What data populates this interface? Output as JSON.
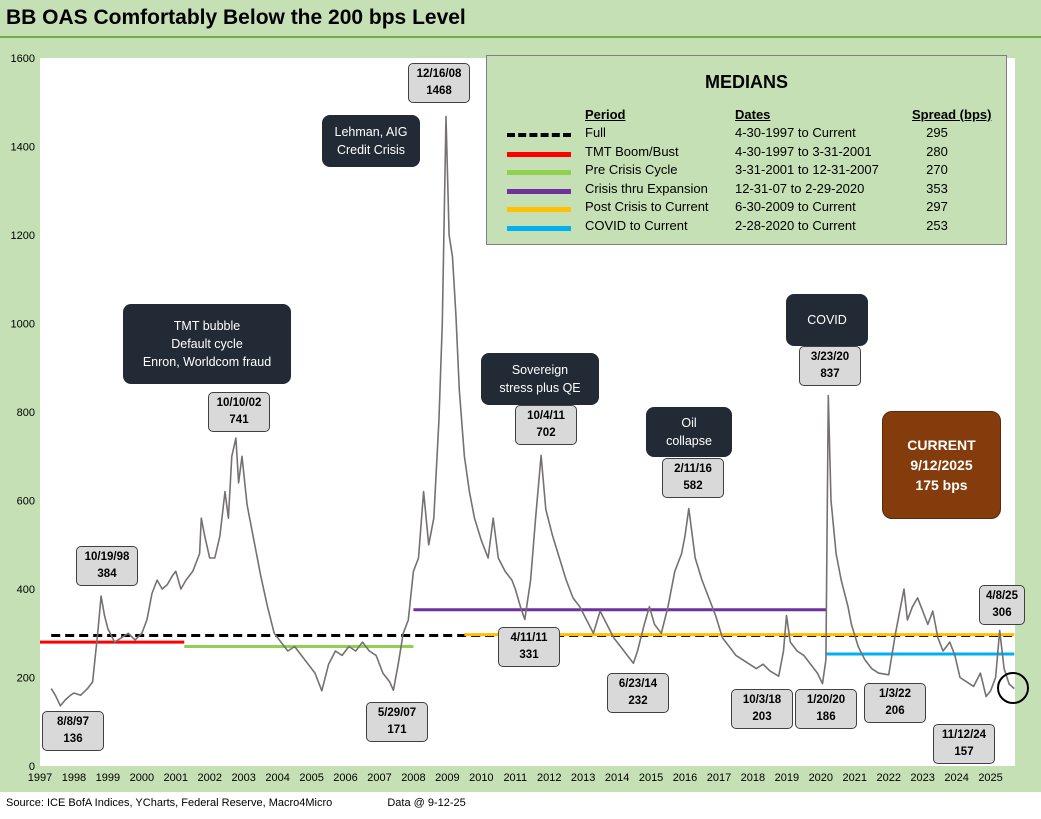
{
  "title": "BB OAS Comfortably Below the 200 bps Level",
  "footer": {
    "source": "Source: ICE BofA Indices, YCharts, Federal Reserve, Macro4Micro",
    "data_date": "Data @ 9-12-25"
  },
  "chart_data": {
    "type": "line",
    "ylim": [
      0,
      1600
    ],
    "yticks": [
      "0",
      "200",
      "400",
      "600",
      "800",
      "1000",
      "1200",
      "1400",
      "1600"
    ],
    "xlim": [
      1997.0,
      2025.72
    ],
    "xticks": [
      "1997",
      "1998",
      "1999",
      "2000",
      "2001",
      "2002",
      "2003",
      "2004",
      "2005",
      "2006",
      "2007",
      "2008",
      "2009",
      "2010",
      "2011",
      "2012",
      "2013",
      "2014",
      "2015",
      "2016",
      "2017",
      "2018",
      "2019",
      "2020",
      "2021",
      "2022",
      "2023",
      "2024",
      "2025"
    ],
    "series": [
      {
        "name": "BB OAS",
        "color": "#767171",
        "points": [
          [
            1997.33,
            175
          ],
          [
            1997.45,
            160
          ],
          [
            1997.6,
            136
          ],
          [
            1997.75,
            150
          ],
          [
            1997.9,
            160
          ],
          [
            1998.0,
            165
          ],
          [
            1998.2,
            160
          ],
          [
            1998.4,
            175
          ],
          [
            1998.55,
            190
          ],
          [
            1998.7,
            300
          ],
          [
            1998.8,
            384
          ],
          [
            1998.9,
            340
          ],
          [
            1999.0,
            310
          ],
          [
            1999.2,
            280
          ],
          [
            1999.4,
            290
          ],
          [
            1999.6,
            300
          ],
          [
            1999.8,
            285
          ],
          [
            2000.0,
            300
          ],
          [
            2000.15,
            330
          ],
          [
            2000.3,
            390
          ],
          [
            2000.45,
            420
          ],
          [
            2000.6,
            400
          ],
          [
            2000.75,
            410
          ],
          [
            2000.9,
            430
          ],
          [
            2001.0,
            440
          ],
          [
            2001.15,
            400
          ],
          [
            2001.3,
            420
          ],
          [
            2001.5,
            440
          ],
          [
            2001.7,
            480
          ],
          [
            2001.75,
            560
          ],
          [
            2001.85,
            520
          ],
          [
            2002.0,
            470
          ],
          [
            2002.15,
            470
          ],
          [
            2002.3,
            520
          ],
          [
            2002.45,
            620
          ],
          [
            2002.55,
            560
          ],
          [
            2002.65,
            700
          ],
          [
            2002.77,
            741
          ],
          [
            2002.85,
            640
          ],
          [
            2002.95,
            700
          ],
          [
            2003.1,
            590
          ],
          [
            2003.3,
            510
          ],
          [
            2003.5,
            430
          ],
          [
            2003.7,
            360
          ],
          [
            2003.9,
            300
          ],
          [
            2004.1,
            280
          ],
          [
            2004.3,
            260
          ],
          [
            2004.5,
            270
          ],
          [
            2004.7,
            250
          ],
          [
            2004.9,
            230
          ],
          [
            2005.1,
            210
          ],
          [
            2005.3,
            170
          ],
          [
            2005.5,
            230
          ],
          [
            2005.7,
            260
          ],
          [
            2005.9,
            250
          ],
          [
            2006.1,
            270
          ],
          [
            2006.3,
            260
          ],
          [
            2006.5,
            280
          ],
          [
            2006.7,
            260
          ],
          [
            2006.9,
            250
          ],
          [
            2007.1,
            210
          ],
          [
            2007.3,
            190
          ],
          [
            2007.41,
            171
          ],
          [
            2007.55,
            230
          ],
          [
            2007.7,
            300
          ],
          [
            2007.85,
            330
          ],
          [
            2008.0,
            440
          ],
          [
            2008.15,
            470
          ],
          [
            2008.3,
            620
          ],
          [
            2008.45,
            500
          ],
          [
            2008.6,
            560
          ],
          [
            2008.75,
            780
          ],
          [
            2008.85,
            1000
          ],
          [
            2008.96,
            1468
          ],
          [
            2009.05,
            1200
          ],
          [
            2009.15,
            1150
          ],
          [
            2009.25,
            1020
          ],
          [
            2009.35,
            850
          ],
          [
            2009.5,
            700
          ],
          [
            2009.65,
            620
          ],
          [
            2009.8,
            560
          ],
          [
            2010.0,
            510
          ],
          [
            2010.2,
            470
          ],
          [
            2010.35,
            560
          ],
          [
            2010.5,
            470
          ],
          [
            2010.7,
            440
          ],
          [
            2010.9,
            420
          ],
          [
            2011.0,
            400
          ],
          [
            2011.15,
            360
          ],
          [
            2011.28,
            331
          ],
          [
            2011.45,
            420
          ],
          [
            2011.6,
            560
          ],
          [
            2011.76,
            702
          ],
          [
            2011.9,
            580
          ],
          [
            2012.1,
            520
          ],
          [
            2012.3,
            470
          ],
          [
            2012.5,
            420
          ],
          [
            2012.7,
            380
          ],
          [
            2012.9,
            360
          ],
          [
            2013.1,
            330
          ],
          [
            2013.3,
            300
          ],
          [
            2013.5,
            350
          ],
          [
            2013.7,
            320
          ],
          [
            2013.9,
            290
          ],
          [
            2014.1,
            270
          ],
          [
            2014.3,
            250
          ],
          [
            2014.48,
            232
          ],
          [
            2014.6,
            260
          ],
          [
            2014.8,
            320
          ],
          [
            2014.95,
            360
          ],
          [
            2015.1,
            320
          ],
          [
            2015.3,
            300
          ],
          [
            2015.5,
            360
          ],
          [
            2015.7,
            440
          ],
          [
            2015.9,
            480
          ],
          [
            2016.0,
            520
          ],
          [
            2016.11,
            582
          ],
          [
            2016.3,
            470
          ],
          [
            2016.5,
            420
          ],
          [
            2016.7,
            380
          ],
          [
            2016.9,
            340
          ],
          [
            2017.1,
            290
          ],
          [
            2017.3,
            270
          ],
          [
            2017.5,
            250
          ],
          [
            2017.7,
            240
          ],
          [
            2017.9,
            230
          ],
          [
            2018.1,
            220
          ],
          [
            2018.3,
            230
          ],
          [
            2018.5,
            215
          ],
          [
            2018.76,
            203
          ],
          [
            2018.9,
            260
          ],
          [
            2018.99,
            340
          ],
          [
            2019.1,
            280
          ],
          [
            2019.3,
            260
          ],
          [
            2019.5,
            250
          ],
          [
            2019.7,
            230
          ],
          [
            2019.9,
            210
          ],
          [
            2020.05,
            186
          ],
          [
            2020.15,
            240
          ],
          [
            2020.22,
            837
          ],
          [
            2020.3,
            600
          ],
          [
            2020.45,
            480
          ],
          [
            2020.6,
            420
          ],
          [
            2020.8,
            360
          ],
          [
            2020.9,
            320
          ],
          [
            2021.1,
            270
          ],
          [
            2021.3,
            240
          ],
          [
            2021.5,
            220
          ],
          [
            2021.7,
            210
          ],
          [
            2022.0,
            206
          ],
          [
            2022.2,
            300
          ],
          [
            2022.45,
            400
          ],
          [
            2022.55,
            330
          ],
          [
            2022.7,
            360
          ],
          [
            2022.85,
            380
          ],
          [
            2023.0,
            350
          ],
          [
            2023.15,
            320
          ],
          [
            2023.3,
            350
          ],
          [
            2023.45,
            290
          ],
          [
            2023.6,
            260
          ],
          [
            2023.8,
            280
          ],
          [
            2023.95,
            250
          ],
          [
            2024.1,
            200
          ],
          [
            2024.3,
            190
          ],
          [
            2024.5,
            180
          ],
          [
            2024.7,
            210
          ],
          [
            2024.87,
            157
          ],
          [
            2025.0,
            170
          ],
          [
            2025.15,
            200
          ],
          [
            2025.27,
            306
          ],
          [
            2025.4,
            220
          ],
          [
            2025.55,
            185
          ],
          [
            2025.7,
            175
          ]
        ]
      }
    ],
    "median_lines": [
      {
        "name": "Full",
        "value": 295,
        "start": 1997.33,
        "end": 2025.7,
        "color": "#000000",
        "dashed": true
      },
      {
        "name": "TMT Boom/Bust",
        "value": 280,
        "start": 1997.0,
        "end": 2001.25,
        "color": "#ff0000"
      },
      {
        "name": "Pre Crisis Cycle",
        "value": 270,
        "start": 2001.25,
        "end": 2008.0,
        "color": "#92d050"
      },
      {
        "name": "Crisis thru Expansion",
        "value": 353,
        "start": 2008.0,
        "end": 2020.16,
        "color": "#7030a0"
      },
      {
        "name": "Post Crisis to Current",
        "value": 297,
        "start": 2009.5,
        "end": 2025.7,
        "color": "#ffc000"
      },
      {
        "name": "COVID to Current",
        "value": 253,
        "start": 2020.16,
        "end": 2025.7,
        "color": "#00b0f0"
      }
    ]
  },
  "medians_table": {
    "title": "MEDIANS",
    "headers": {
      "period": "Period",
      "dates": "Dates",
      "spread": "Spread (bps)"
    },
    "rows": [
      {
        "period": "Full",
        "dates": "4-30-1997 to Current",
        "spread": "295"
      },
      {
        "period": "TMT  Boom/Bust",
        "dates": "4-30-1997 to 3-31-2001",
        "spread": "280"
      },
      {
        "period": "Pre Crisis Cycle",
        "dates": "3-31-2001  to 12-31-2007",
        "spread": "270"
      },
      {
        "period": "Crisis thru Expansion",
        "dates": "12-31-07 to 2-29-2020",
        "spread": "353"
      },
      {
        "period": "Post Crisis to Current",
        "dates": "6-30-2009  to Current",
        "spread": "297"
      },
      {
        "period": "COVID to Current",
        "dates": " 2-28-2020 to Current",
        "spread": "253"
      }
    ]
  },
  "callouts": [
    {
      "date": "8/8/97",
      "value": "136"
    },
    {
      "date": "10/19/98",
      "value": "384"
    },
    {
      "date": "10/10/02",
      "value": "741"
    },
    {
      "date": "5/29/07",
      "value": "171"
    },
    {
      "date": "12/16/08",
      "value": "1468"
    },
    {
      "date": "4/11/11",
      "value": "331"
    },
    {
      "date": "10/4/11",
      "value": "702"
    },
    {
      "date": "6/23/14",
      "value": "232"
    },
    {
      "date": "2/11/16",
      "value": "582"
    },
    {
      "date": "10/3/18",
      "value": "203"
    },
    {
      "date": "1/20/20",
      "value": "186"
    },
    {
      "date": "3/23/20",
      "value": "837"
    },
    {
      "date": "1/3/22",
      "value": "206"
    },
    {
      "date": "11/12/24",
      "value": "157"
    },
    {
      "date": "4/8/25",
      "value": "306"
    }
  ],
  "events": [
    {
      "lines": [
        "TMT bubble",
        "Default cycle",
        "Enron, Worldcom fraud"
      ]
    },
    {
      "lines": [
        "Lehman, AIG",
        "Credit Crisis"
      ]
    },
    {
      "lines": [
        "Sovereign",
        "stress plus QE"
      ]
    },
    {
      "lines": [
        "Oil",
        "collapse"
      ]
    },
    {
      "lines": [
        "COVID"
      ]
    }
  ],
  "current": {
    "label": "CURRENT",
    "date": "9/12/2025",
    "value": "175 bps"
  }
}
